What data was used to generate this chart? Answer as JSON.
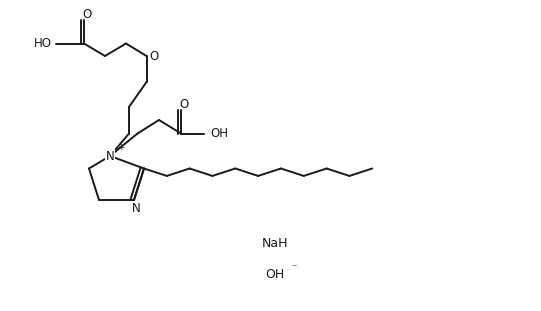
{
  "bg_color": "#ffffff",
  "line_color": "#1a1a1a",
  "line_width": 1.4,
  "font_size": 8.5,
  "text_color": "#1a1a1a",
  "figsize": [
    5.41,
    3.11
  ],
  "dpi": 100,
  "xlim": [
    0,
    10.82
  ],
  "ylim": [
    0,
    6.22
  ]
}
